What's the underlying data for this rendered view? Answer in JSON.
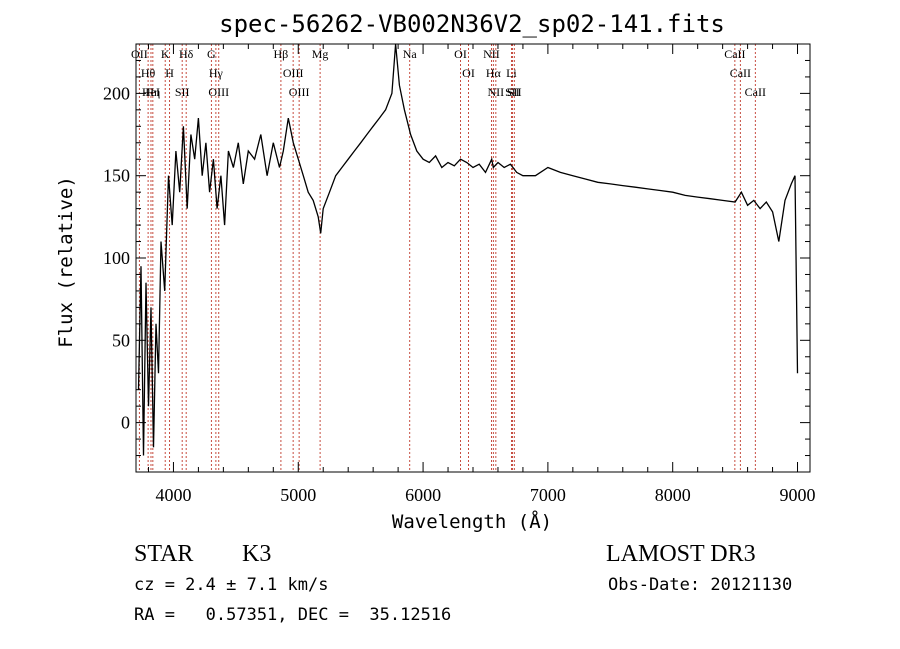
{
  "chart_data": {
    "type": "line",
    "title": "spec-56262-VB002N36V2_sp02-141.fits",
    "xlabel": "Wavelength (Å)",
    "ylabel": "Flux (relative)",
    "xlim": [
      3700,
      9100
    ],
    "ylim": [
      -30,
      230
    ],
    "xticks": [
      4000,
      5000,
      6000,
      7000,
      8000,
      9000
    ],
    "yticks": [
      0,
      50,
      100,
      150,
      200
    ],
    "series": [
      {
        "name": "flux",
        "x": [
          3720,
          3740,
          3760,
          3780,
          3800,
          3820,
          3840,
          3860,
          3880,
          3900,
          3930,
          3960,
          3990,
          4020,
          4050,
          4080,
          4110,
          4140,
          4170,
          4200,
          4230,
          4260,
          4290,
          4320,
          4350,
          4380,
          4410,
          4440,
          4480,
          4520,
          4560,
          4600,
          4650,
          4700,
          4750,
          4800,
          4850,
          4880,
          4920,
          4960,
          5000,
          5040,
          5080,
          5120,
          5160,
          5180,
          5200,
          5250,
          5300,
          5350,
          5400,
          5450,
          5500,
          5550,
          5600,
          5650,
          5700,
          5750,
          5780,
          5810,
          5850,
          5900,
          5950,
          6000,
          6050,
          6100,
          6150,
          6200,
          6250,
          6300,
          6350,
          6400,
          6450,
          6500,
          6550,
          6563,
          6600,
          6650,
          6700,
          6750,
          6800,
          6900,
          7000,
          7100,
          7200,
          7300,
          7400,
          7500,
          7600,
          7700,
          7800,
          7900,
          8000,
          8100,
          8200,
          8300,
          8400,
          8500,
          8550,
          8600,
          8650,
          8700,
          8750,
          8800,
          8850,
          8900,
          8950,
          8980,
          9000
        ],
        "values": [
          20,
          95,
          -20,
          85,
          10,
          70,
          -15,
          60,
          30,
          110,
          80,
          150,
          120,
          165,
          140,
          180,
          130,
          175,
          160,
          185,
          150,
          170,
          140,
          160,
          130,
          150,
          120,
          165,
          155,
          170,
          145,
          165,
          160,
          175,
          150,
          170,
          155,
          165,
          185,
          170,
          160,
          150,
          140,
          135,
          125,
          115,
          130,
          140,
          150,
          155,
          160,
          165,
          170,
          175,
          180,
          185,
          190,
          200,
          230,
          205,
          190,
          175,
          165,
          160,
          158,
          162,
          155,
          158,
          156,
          160,
          158,
          155,
          157,
          152,
          160,
          155,
          158,
          155,
          157,
          152,
          150,
          150,
          155,
          152,
          150,
          148,
          146,
          145,
          144,
          143,
          142,
          141,
          140,
          138,
          137,
          136,
          135,
          134,
          140,
          132,
          135,
          130,
          134,
          128,
          110,
          135,
          145,
          150,
          30
        ]
      }
    ],
    "lines": [
      {
        "name": "O II",
        "label": "OII",
        "x": 3727
      },
      {
        "name": "H theta",
        "label": "Hθ",
        "x": 3797
      },
      {
        "name": "He I",
        "label": "HeI",
        "x": 3820
      },
      {
        "name": "H eta",
        "label": "Hη",
        "x": 3835
      },
      {
        "name": "Ca K",
        "label": "K",
        "x": 3934
      },
      {
        "name": "Ca H",
        "label": "H",
        "x": 3969
      },
      {
        "name": "S II",
        "label": "SII",
        "x": 4070
      },
      {
        "name": "H delta",
        "label": "Hδ",
        "x": 4102
      },
      {
        "name": "G band",
        "label": "G",
        "x": 4304
      },
      {
        "name": "H gamma",
        "label": "Hγ",
        "x": 4340
      },
      {
        "name": "O III",
        "label": "OIII",
        "x": 4363
      },
      {
        "name": "H beta",
        "label": "Hβ",
        "x": 4861
      },
      {
        "name": "O III",
        "label": "OIII",
        "x": 4959
      },
      {
        "name": "O III",
        "label": "OIII",
        "x": 5007
      },
      {
        "name": "Mg",
        "label": "Mg",
        "x": 5175
      },
      {
        "name": "Na",
        "label": "Na",
        "x": 5893
      },
      {
        "name": "O I",
        "label": "OI",
        "x": 6300
      },
      {
        "name": "O I",
        "label": "OI",
        "x": 6364
      },
      {
        "name": "N II",
        "label": "NII",
        "x": 6548
      },
      {
        "name": "H alpha",
        "label": "Hα",
        "x": 6563
      },
      {
        "name": "N II",
        "label": "NII",
        "x": 6583
      },
      {
        "name": "Li",
        "label": "Li",
        "x": 6708
      },
      {
        "name": "S II",
        "label": "SII",
        "x": 6716
      },
      {
        "name": "S II",
        "label": "SII",
        "x": 6731
      },
      {
        "name": "Ca II",
        "label": "CaII",
        "x": 8498
      },
      {
        "name": "Ca II",
        "label": "CaII",
        "x": 8542
      },
      {
        "name": "Ca II",
        "label": "CaII",
        "x": 8662
      }
    ]
  },
  "info": {
    "class_label": "STAR",
    "subclass": "K3",
    "survey": "LAMOST DR3",
    "cz": "cz = 2.4 ± 7.1 km/s",
    "obs_date": "Obs-Date: 20121130",
    "coords": "RA =   0.57351, DEC =  35.12516"
  },
  "colors": {
    "spectrum": "#000000",
    "line_markers": "#c0392b",
    "frame": "#000000"
  }
}
